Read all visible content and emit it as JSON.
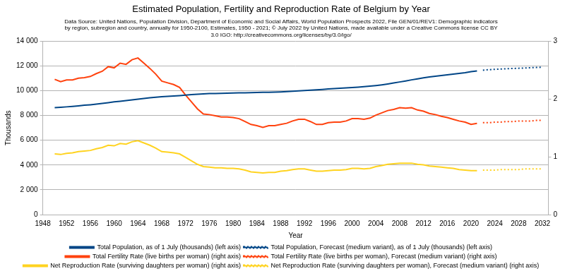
{
  "chart_data": {
    "type": "line",
    "title": "Estimated Population, Fertility and Reproduction Rate of Belgium by Year",
    "subtitle": [
      "Data Source: United Nations, Population Division, Department of Economic and Social Affairs, World Population Prospects 2022, File GEN/01/REV1: Demographic indicators",
      "by region, subregion and country, annually for 1950-2100, Estimates, 1950 - 2021; © July 2022 by United Nations, made available under a Creative Commons license CC BY",
      "3.0 IGO: http://creativecommons.org/licenses/by/3.0/igo/"
    ],
    "x_label": "Year",
    "y_label": "Thousands",
    "xlim": [
      1948,
      2033
    ],
    "xticks": [
      1948,
      1952,
      1956,
      1960,
      1964,
      1968,
      1972,
      1976,
      1980,
      1984,
      1988,
      1992,
      1996,
      2000,
      2004,
      2008,
      2012,
      2016,
      2020,
      2024,
      2028,
      2032
    ],
    "ylim": [
      0,
      14000
    ],
    "yticks": [
      0,
      {
        "value": 2000,
        "label": "2 000"
      },
      {
        "value": 4000,
        "label": "4 000"
      },
      {
        "value": 6000,
        "label": "6 000"
      },
      {
        "value": 8000,
        "label": "8 000"
      },
      {
        "value": 10000,
        "label": "10 000"
      },
      {
        "value": 12000,
        "label": "12 000"
      },
      {
        "value": 14000,
        "label": "14 000"
      }
    ],
    "y2lim": [
      0,
      3
    ],
    "y2ticks": [
      0,
      1,
      2,
      3
    ],
    "grid": true,
    "legend": "bottom",
    "series": [
      {
        "name": "Total Population, as of 1 July (thousands) (left axis)",
        "color": "#004586",
        "line_style": "solid",
        "axis": "y",
        "x": [
          1950,
          1951,
          1952,
          1953,
          1954,
          1955,
          1956,
          1957,
          1958,
          1959,
          1960,
          1961,
          1962,
          1963,
          1964,
          1965,
          1966,
          1967,
          1968,
          1969,
          1970,
          1971,
          1972,
          1973,
          1974,
          1975,
          1976,
          1977,
          1978,
          1979,
          1980,
          1981,
          1982,
          1983,
          1984,
          1985,
          1986,
          1987,
          1988,
          1989,
          1990,
          1991,
          1992,
          1993,
          1994,
          1995,
          1996,
          1997,
          1998,
          1999,
          2000,
          2001,
          2002,
          2003,
          2004,
          2005,
          2006,
          2007,
          2008,
          2009,
          2010,
          2011,
          2012,
          2013,
          2014,
          2015,
          2016,
          2017,
          2018,
          2019,
          2020,
          2021
        ],
        "values": [
          8630,
          8660,
          8700,
          8740,
          8780,
          8830,
          8870,
          8920,
          8980,
          9040,
          9100,
          9150,
          9200,
          9260,
          9320,
          9380,
          9430,
          9480,
          9520,
          9550,
          9580,
          9610,
          9650,
          9690,
          9720,
          9750,
          9770,
          9780,
          9790,
          9810,
          9820,
          9830,
          9840,
          9850,
          9860,
          9870,
          9880,
          9890,
          9910,
          9930,
          9960,
          9990,
          10020,
          10050,
          10080,
          10110,
          10140,
          10170,
          10200,
          10230,
          10260,
          10290,
          10330,
          10370,
          10420,
          10480,
          10550,
          10630,
          10710,
          10790,
          10880,
          10960,
          11040,
          11110,
          11170,
          11230,
          11290,
          11340,
          11400,
          11460,
          11540,
          11600
        ]
      },
      {
        "name": "Total Population, Forecast (medium variant), as of 1 July (thousands) (left axis)",
        "color": "#004586",
        "line_style": "dotted",
        "axis": "y",
        "x": [
          2022,
          2023,
          2024,
          2025,
          2026,
          2027,
          2028,
          2029,
          2030,
          2031,
          2032
        ],
        "values": [
          11660,
          11700,
          11730,
          11760,
          11780,
          11800,
          11820,
          11840,
          11860,
          11880,
          11900
        ]
      },
      {
        "name": "Total Fertility Rate (live births per woman) (right axis)",
        "color": "#ff420e",
        "line_style": "solid",
        "axis": "y2",
        "x": [
          1950,
          1951,
          1952,
          1953,
          1954,
          1955,
          1956,
          1957,
          1958,
          1959,
          1960,
          1961,
          1962,
          1963,
          1964,
          1965,
          1966,
          1967,
          1968,
          1969,
          1970,
          1971,
          1972,
          1973,
          1974,
          1975,
          1976,
          1977,
          1978,
          1979,
          1980,
          1981,
          1982,
          1983,
          1984,
          1985,
          1986,
          1987,
          1988,
          1989,
          1990,
          1991,
          1992,
          1993,
          1994,
          1995,
          1996,
          1997,
          1998,
          1999,
          2000,
          2001,
          2002,
          2003,
          2004,
          2005,
          2006,
          2007,
          2008,
          2009,
          2010,
          2011,
          2012,
          2013,
          2014,
          2015,
          2016,
          2017,
          2018,
          2019,
          2020,
          2021
        ],
        "values": [
          2.34,
          2.3,
          2.33,
          2.33,
          2.36,
          2.37,
          2.39,
          2.44,
          2.48,
          2.56,
          2.54,
          2.62,
          2.6,
          2.68,
          2.71,
          2.62,
          2.53,
          2.43,
          2.31,
          2.28,
          2.25,
          2.2,
          2.07,
          1.95,
          1.83,
          1.74,
          1.73,
          1.71,
          1.69,
          1.69,
          1.68,
          1.66,
          1.61,
          1.56,
          1.54,
          1.51,
          1.54,
          1.54,
          1.56,
          1.58,
          1.62,
          1.65,
          1.65,
          1.61,
          1.56,
          1.56,
          1.59,
          1.6,
          1.6,
          1.62,
          1.66,
          1.66,
          1.65,
          1.67,
          1.72,
          1.76,
          1.8,
          1.82,
          1.85,
          1.84,
          1.85,
          1.81,
          1.79,
          1.75,
          1.73,
          1.7,
          1.68,
          1.65,
          1.62,
          1.6,
          1.56,
          1.58
        ]
      },
      {
        "name": "Total Fertility Rate (live births per woman), Forecast (medium variant) (right axis)",
        "color": "#ff420e",
        "line_style": "dotted",
        "axis": "y2",
        "x": [
          2022,
          2023,
          2024,
          2025,
          2026,
          2027,
          2028,
          2029,
          2030,
          2031,
          2032
        ],
        "values": [
          1.59,
          1.59,
          1.6,
          1.6,
          1.61,
          1.61,
          1.62,
          1.62,
          1.62,
          1.63,
          1.63
        ]
      },
      {
        "name": "Net Reproduction Rate (surviving daughters per woman) (right axis)",
        "color": "#ffd320",
        "line_style": "solid",
        "axis": "y2",
        "x": [
          1950,
          1951,
          1952,
          1953,
          1954,
          1955,
          1956,
          1957,
          1958,
          1959,
          1960,
          1961,
          1962,
          1963,
          1964,
          1965,
          1966,
          1967,
          1968,
          1969,
          1970,
          1971,
          1972,
          1973,
          1974,
          1975,
          1976,
          1977,
          1978,
          1979,
          1980,
          1981,
          1982,
          1983,
          1984,
          1985,
          1986,
          1987,
          1988,
          1989,
          1990,
          1991,
          1992,
          1993,
          1994,
          1995,
          1996,
          1997,
          1998,
          1999,
          2000,
          2001,
          2002,
          2003,
          2004,
          2005,
          2006,
          2007,
          2008,
          2009,
          2010,
          2011,
          2012,
          2013,
          2014,
          2015,
          2016,
          2017,
          2018,
          2019,
          2020,
          2021
        ],
        "values": [
          1.05,
          1.04,
          1.06,
          1.07,
          1.09,
          1.1,
          1.11,
          1.14,
          1.16,
          1.2,
          1.19,
          1.23,
          1.22,
          1.26,
          1.28,
          1.24,
          1.2,
          1.15,
          1.09,
          1.08,
          1.07,
          1.05,
          0.99,
          0.93,
          0.87,
          0.83,
          0.82,
          0.81,
          0.81,
          0.8,
          0.8,
          0.79,
          0.77,
          0.74,
          0.73,
          0.72,
          0.73,
          0.73,
          0.75,
          0.76,
          0.78,
          0.79,
          0.79,
          0.77,
          0.75,
          0.75,
          0.76,
          0.77,
          0.77,
          0.78,
          0.8,
          0.8,
          0.79,
          0.8,
          0.83,
          0.85,
          0.87,
          0.88,
          0.89,
          0.89,
          0.89,
          0.87,
          0.86,
          0.84,
          0.83,
          0.82,
          0.81,
          0.8,
          0.78,
          0.77,
          0.76,
          0.76
        ]
      },
      {
        "name": "Net Reproduction Rate (surviving daughters per woman), Forecast (medium variant) (right axis)",
        "color": "#ffd320",
        "line_style": "dotted",
        "axis": "y2",
        "x": [
          2022,
          2023,
          2024,
          2025,
          2026,
          2027,
          2028,
          2029,
          2030,
          2031,
          2032
        ],
        "values": [
          0.77,
          0.77,
          0.77,
          0.78,
          0.78,
          0.78,
          0.78,
          0.79,
          0.79,
          0.79,
          0.79
        ]
      }
    ]
  }
}
